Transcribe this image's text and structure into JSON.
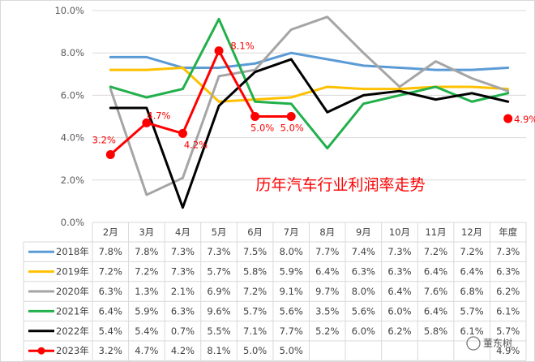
{
  "chart_data": {
    "type": "line",
    "title": "历年汽车行业利润率走势",
    "categories": [
      "2月",
      "3月",
      "4月",
      "5月",
      "6月",
      "7月",
      "8月",
      "9月",
      "10月",
      "11月",
      "12月",
      "年度"
    ],
    "y_ticks": [
      "0.0%",
      "2.0%",
      "4.0%",
      "6.0%",
      "8.0%",
      "10.0%"
    ],
    "ylim": [
      0,
      10
    ],
    "grid": true,
    "legend_placement": "data table below plot",
    "series": [
      {
        "name": "2018年",
        "color": "#5b9bd5",
        "values": [
          7.8,
          7.8,
          7.3,
          7.3,
          7.5,
          8.0,
          7.7,
          7.4,
          7.3,
          7.2,
          7.2,
          7.3
        ],
        "labels": [
          "7.8%",
          "7.8%",
          "7.3%",
          "7.3%",
          "7.5%",
          "8.0%",
          "7.7%",
          "7.4%",
          "7.3%",
          "7.2%",
          "7.2%",
          "7.3%"
        ]
      },
      {
        "name": "2019年",
        "color": "#ffc000",
        "values": [
          7.2,
          7.2,
          7.3,
          5.7,
          5.8,
          5.9,
          6.4,
          6.3,
          6.3,
          6.4,
          6.4,
          6.3
        ],
        "labels": [
          "7.2%",
          "7.2%",
          "7.3%",
          "5.7%",
          "5.8%",
          "5.9%",
          "6.4%",
          "6.3%",
          "6.3%",
          "6.4%",
          "6.4%",
          "6.3%"
        ]
      },
      {
        "name": "2020年",
        "color": "#a5a5a5",
        "values": [
          6.3,
          1.3,
          2.1,
          6.9,
          7.2,
          9.1,
          9.7,
          8.0,
          6.4,
          7.6,
          6.8,
          6.2
        ],
        "labels": [
          "6.3%",
          "1.3%",
          "2.1%",
          "6.9%",
          "7.2%",
          "9.1%",
          "9.7%",
          "8.0%",
          "6.4%",
          "7.6%",
          "6.8%",
          "6.2%"
        ]
      },
      {
        "name": "2021年",
        "color": "#21b04b",
        "values": [
          6.4,
          5.9,
          6.3,
          9.6,
          5.7,
          5.6,
          3.5,
          5.6,
          6.0,
          6.4,
          5.7,
          6.1
        ],
        "labels": [
          "6.4%",
          "5.9%",
          "6.3%",
          "9.6%",
          "5.7%",
          "5.6%",
          "3.5%",
          "5.6%",
          "6.0%",
          "6.4%",
          "5.7%",
          "6.1%"
        ]
      },
      {
        "name": "2022年",
        "color": "#000000",
        "values": [
          5.4,
          5.4,
          0.7,
          5.5,
          7.1,
          7.7,
          5.2,
          6.0,
          6.2,
          5.8,
          6.1,
          5.7
        ],
        "labels": [
          "5.4%",
          "5.4%",
          "0.7%",
          "5.5%",
          "7.1%",
          "7.7%",
          "5.2%",
          "6.0%",
          "6.2%",
          "5.8%",
          "6.1%",
          "5.7%"
        ]
      },
      {
        "name": "2023年",
        "color": "#ff0000",
        "values": [
          3.2,
          4.7,
          4.2,
          8.1,
          5.0,
          5.0,
          null,
          null,
          null,
          null,
          null,
          4.9
        ],
        "labels": [
          "3.2%",
          "4.7%",
          "4.2%",
          "8.1%",
          "5.0%",
          "5.0%",
          "",
          "",
          "",
          "",
          "",
          "4.9%"
        ],
        "markers": true,
        "data_labels": true
      }
    ]
  },
  "watermark": "董东树"
}
